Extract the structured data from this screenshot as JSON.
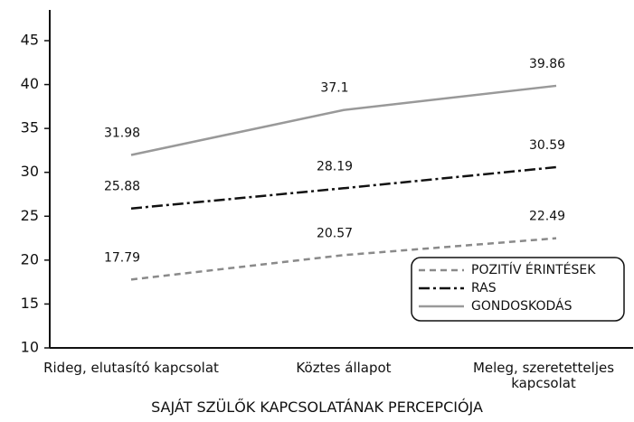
{
  "chart_data": {
    "type": "line",
    "x_label": "SAJÁT SZÜLŐK KAPCSOLATÁNAK PERCEPCIÓJA",
    "categories": [
      "Rideg, elutasító kapcsolat",
      "Köztes állapot",
      "Meleg, szeretetteljes kapcsolat"
    ],
    "series": [
      {
        "name": "POZITÍV ÉRINTÉSEK",
        "color": "#8a8a8a",
        "dash": "dashed",
        "values": [
          17.79,
          20.57,
          22.49
        ]
      },
      {
        "name": "RAS",
        "color": "#111111",
        "dash": "dashdot",
        "values": [
          25.88,
          28.19,
          30.59
        ]
      },
      {
        "name": "GONDOSKODÁS",
        "color": "#999999",
        "dash": "solid",
        "values": [
          31.98,
          37.1,
          39.86
        ]
      }
    ],
    "ylim": [
      10,
      48.5
    ],
    "yticks": [
      10,
      15,
      20,
      25,
      30,
      35,
      40,
      45
    ],
    "legend": "lower right"
  }
}
